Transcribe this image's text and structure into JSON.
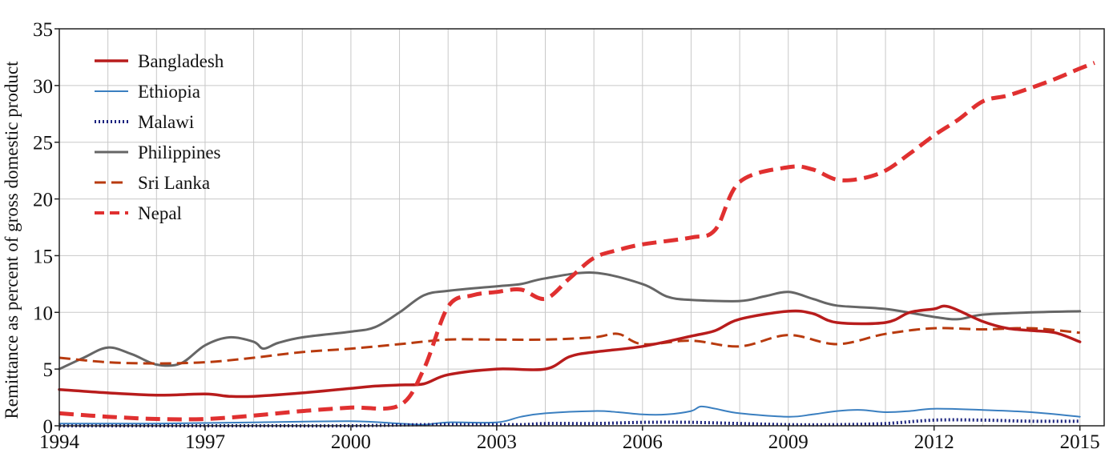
{
  "chart_data": {
    "type": "line",
    "title": "",
    "xlabel": "",
    "ylabel": "Remittance as percent of gross domestic product",
    "xlim": [
      1994,
      2015.5
    ],
    "ylim": [
      0,
      35
    ],
    "x_ticks": [
      "1994",
      "1997",
      "2000",
      "2003",
      "2006",
      "2009",
      "2012",
      "2015"
    ],
    "y_ticks": [
      "0",
      "5",
      "10",
      "15",
      "20",
      "25",
      "30",
      "35"
    ],
    "grid": true,
    "legend_position": "top-left",
    "series": [
      {
        "name": "Bangladesh",
        "color": "#b81c1c",
        "style": "solid",
        "points": [
          [
            1994,
            3.2
          ],
          [
            1995,
            2.9
          ],
          [
            1996,
            2.7
          ],
          [
            1997,
            2.8
          ],
          [
            1997.5,
            2.6
          ],
          [
            1998,
            2.6
          ],
          [
            1999,
            2.9
          ],
          [
            2000,
            3.3
          ],
          [
            2000.5,
            3.5
          ],
          [
            2001,
            3.6
          ],
          [
            2001.5,
            3.7
          ],
          [
            2002,
            4.5
          ],
          [
            2003,
            5.0
          ],
          [
            2004,
            5.0
          ],
          [
            2004.5,
            6.1
          ],
          [
            2005,
            6.5
          ],
          [
            2006,
            7.0
          ],
          [
            2007,
            7.9
          ],
          [
            2007.5,
            8.4
          ],
          [
            2008,
            9.4
          ],
          [
            2009,
            10.1
          ],
          [
            2009.5,
            9.9
          ],
          [
            2010,
            9.1
          ],
          [
            2011,
            9.1
          ],
          [
            2011.5,
            10.0
          ],
          [
            2012,
            10.3
          ],
          [
            2012.3,
            10.5
          ],
          [
            2013,
            9.2
          ],
          [
            2013.5,
            8.6
          ],
          [
            2014,
            8.4
          ],
          [
            2014.5,
            8.2
          ],
          [
            2015,
            7.4
          ]
        ]
      },
      {
        "name": "Ethiopia",
        "color": "#3a7fc0",
        "style": "solid",
        "points": [
          [
            1994,
            0.2
          ],
          [
            1996,
            0.2
          ],
          [
            1998,
            0.3
          ],
          [
            2000,
            0.4
          ],
          [
            2001,
            0.2
          ],
          [
            2001.5,
            0.1
          ],
          [
            2002,
            0.3
          ],
          [
            2003,
            0.3
          ],
          [
            2003.5,
            0.8
          ],
          [
            2004,
            1.1
          ],
          [
            2005,
            1.3
          ],
          [
            2005.5,
            1.2
          ],
          [
            2006,
            1.0
          ],
          [
            2006.5,
            1.0
          ],
          [
            2007,
            1.3
          ],
          [
            2007.2,
            1.7
          ],
          [
            2007.5,
            1.5
          ],
          [
            2008,
            1.1
          ],
          [
            2009,
            0.8
          ],
          [
            2009.5,
            1.0
          ],
          [
            2010,
            1.3
          ],
          [
            2010.5,
            1.4
          ],
          [
            2011,
            1.2
          ],
          [
            2011.5,
            1.3
          ],
          [
            2012,
            1.5
          ],
          [
            2013,
            1.4
          ],
          [
            2014,
            1.2
          ],
          [
            2015,
            0.8
          ]
        ]
      },
      {
        "name": "Malawi",
        "color": "#1a237e",
        "style": "dotted",
        "points": [
          [
            1994,
            0.0
          ],
          [
            1996,
            0.0
          ],
          [
            1998,
            0.0
          ],
          [
            2000,
            0.0
          ],
          [
            2001.5,
            0.1
          ],
          [
            2002.5,
            0.1
          ],
          [
            2003.5,
            0.1
          ],
          [
            2004,
            0.2
          ],
          [
            2005,
            0.2
          ],
          [
            2006,
            0.3
          ],
          [
            2007,
            0.3
          ],
          [
            2008,
            0.2
          ],
          [
            2009,
            0.1
          ],
          [
            2010,
            0.1
          ],
          [
            2011,
            0.2
          ],
          [
            2012,
            0.5
          ],
          [
            2013,
            0.5
          ],
          [
            2014,
            0.4
          ],
          [
            2015,
            0.4
          ]
        ]
      },
      {
        "name": "Philippines",
        "color": "#666666",
        "style": "solid",
        "points": [
          [
            1994,
            5.0
          ],
          [
            1994.5,
            6.0
          ],
          [
            1995,
            6.9
          ],
          [
            1995.5,
            6.3
          ],
          [
            1996,
            5.4
          ],
          [
            1996.5,
            5.5
          ],
          [
            1997,
            7.1
          ],
          [
            1997.5,
            7.8
          ],
          [
            1998,
            7.4
          ],
          [
            1998.2,
            6.8
          ],
          [
            1998.5,
            7.3
          ],
          [
            1999,
            7.8
          ],
          [
            2000,
            8.3
          ],
          [
            2000.5,
            8.7
          ],
          [
            2001,
            10.0
          ],
          [
            2001.5,
            11.5
          ],
          [
            2002,
            11.9
          ],
          [
            2003,
            12.3
          ],
          [
            2003.5,
            12.5
          ],
          [
            2004,
            13.0
          ],
          [
            2005,
            13.5
          ],
          [
            2006,
            12.5
          ],
          [
            2006.5,
            11.4
          ],
          [
            2007,
            11.1
          ],
          [
            2008,
            11.0
          ],
          [
            2008.5,
            11.4
          ],
          [
            2009,
            11.8
          ],
          [
            2009.5,
            11.2
          ],
          [
            2010,
            10.6
          ],
          [
            2011,
            10.3
          ],
          [
            2012,
            9.6
          ],
          [
            2012.5,
            9.4
          ],
          [
            2013,
            9.8
          ],
          [
            2014,
            10.0
          ],
          [
            2015,
            10.1
          ]
        ]
      },
      {
        "name": "Sri Lanka",
        "color": "#b83a0e",
        "style": "dotted",
        "points": [
          [
            1994,
            6.0
          ],
          [
            1995,
            5.6
          ],
          [
            1996,
            5.5
          ],
          [
            1997,
            5.6
          ],
          [
            1998,
            6.0
          ],
          [
            1999,
            6.5
          ],
          [
            2000,
            6.8
          ],
          [
            2001,
            7.2
          ],
          [
            2002,
            7.6
          ],
          [
            2003,
            7.6
          ],
          [
            2004,
            7.6
          ],
          [
            2005,
            7.8
          ],
          [
            2005.5,
            8.1
          ],
          [
            2006,
            7.2
          ],
          [
            2007,
            7.5
          ],
          [
            2008,
            7.0
          ],
          [
            2009,
            8.0
          ],
          [
            2010,
            7.2
          ],
          [
            2011,
            8.1
          ],
          [
            2012,
            8.6
          ],
          [
            2013,
            8.5
          ],
          [
            2014,
            8.6
          ],
          [
            2015,
            8.2
          ]
        ]
      },
      {
        "name": "Nepal",
        "color": "#e03030",
        "style": "dashed",
        "points": [
          [
            1994,
            1.1
          ],
          [
            1995,
            0.8
          ],
          [
            1996,
            0.6
          ],
          [
            1997,
            0.6
          ],
          [
            1998,
            0.9
          ],
          [
            1999,
            1.3
          ],
          [
            2000,
            1.6
          ],
          [
            2001,
            1.8
          ],
          [
            2001.5,
            5.0
          ],
          [
            2002,
            10.5
          ],
          [
            2002.5,
            11.5
          ],
          [
            2003,
            11.8
          ],
          [
            2003.5,
            12.0
          ],
          [
            2004,
            11.2
          ],
          [
            2004.5,
            13.0
          ],
          [
            2005,
            14.8
          ],
          [
            2005.5,
            15.5
          ],
          [
            2006,
            16.0
          ],
          [
            2007,
            16.6
          ],
          [
            2007.5,
            17.3
          ],
          [
            2008,
            21.5
          ],
          [
            2009,
            22.8
          ],
          [
            2009.5,
            22.6
          ],
          [
            2010,
            21.7
          ],
          [
            2010.5,
            21.8
          ],
          [
            2011,
            22.5
          ],
          [
            2011.5,
            24.0
          ],
          [
            2012,
            25.6
          ],
          [
            2012.5,
            27.0
          ],
          [
            2013,
            28.6
          ],
          [
            2013.5,
            29.1
          ],
          [
            2014,
            29.8
          ],
          [
            2014.5,
            30.6
          ],
          [
            2015,
            31.5
          ],
          [
            2015.3,
            32.0
          ]
        ]
      }
    ]
  }
}
